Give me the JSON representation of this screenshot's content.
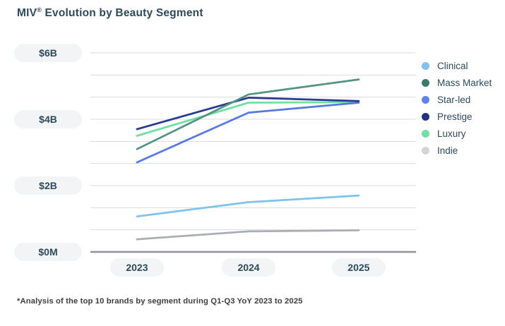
{
  "page": {
    "title_prefix": "MIV",
    "title_sup": "®",
    "title_rest": " Evolution by Beauty Segment"
  },
  "colors": {
    "background": "#FFFFFF",
    "title_text": "#2B4A5C",
    "axis_label_text": "#2B4A5C",
    "axis_pill_bg": "#F3F4F6",
    "gridline": "#D8DBDE",
    "axis_line": "#8E939B"
  },
  "chart_data": {
    "type": "line",
    "title": "MIV® Evolution by Beauty Segment",
    "categories": [
      "2023",
      "2024",
      "2025"
    ],
    "series": [
      {
        "name": "Clinical",
        "color": "#7FC2EC",
        "values": [
          1.07,
          1.5,
          1.7
        ]
      },
      {
        "name": "Mass Market",
        "color": "#549283",
        "marker_color": "#3A7C6B",
        "values": [
          3.1,
          4.75,
          5.2
        ]
      },
      {
        "name": "Star-led",
        "color": "#5578E4",
        "marker_color": "#6084EC",
        "values": [
          2.7,
          4.2,
          4.5
        ]
      },
      {
        "name": "Prestige",
        "color": "#273B92",
        "marker_color": "#21337F",
        "values": [
          3.7,
          4.65,
          4.55
        ]
      },
      {
        "name": "Luxury",
        "color": "#6FE0A2",
        "values": [
          3.5,
          4.5,
          4.52
        ]
      },
      {
        "name": "Indie",
        "color": "#A9AEB4",
        "marker_color": "#D2D6DA",
        "values": [
          0.38,
          0.62,
          0.65
        ]
      }
    ],
    "ylim": [
      0,
      6
    ],
    "y_ticks": [
      {
        "value": 6,
        "label": "$6B"
      },
      {
        "value": 4,
        "label": "$4B"
      },
      {
        "value": 2,
        "label": "$2B"
      },
      {
        "value": 0,
        "label": "$0M"
      }
    ],
    "gridline_count": 10,
    "grid": true,
    "legend_position": "right",
    "footnote": "*Analysis of the top 10 brands by segment during Q1-Q3 YoY 2023 to 2025"
  }
}
